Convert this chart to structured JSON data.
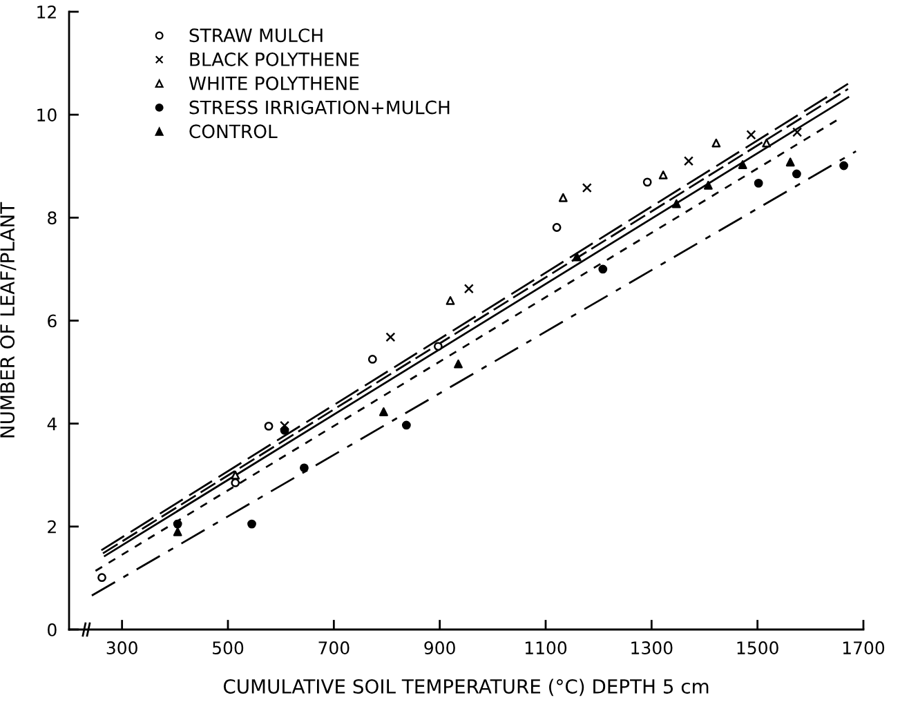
{
  "chart_data": {
    "type": "scatter",
    "xlabel": "CUMULATIVE SOIL TEMPERATURE (°C) DEPTH 5 cm",
    "ylabel": "NUMBER OF LEAF/PLANT",
    "xlim": [
      200,
      1700
    ],
    "xticks": [
      300,
      500,
      700,
      900,
      1100,
      1300,
      1500,
      1700
    ],
    "ylim": [
      0,
      12
    ],
    "yticks": [
      0,
      2,
      4,
      6,
      8,
      10,
      12
    ],
    "grid": false,
    "legend": "top left",
    "series": [
      {
        "name": "STRAW MULCH",
        "marker": "circle-open",
        "color": "#000000",
        "x": [
          262,
          514,
          577,
          773,
          897,
          1121,
          1292
        ],
        "values": [
          1.01,
          2.85,
          3.95,
          5.25,
          5.5,
          7.81,
          8.69
        ]
      },
      {
        "name": "BLACK POLYTHENE",
        "marker": "cross",
        "color": "#000000",
        "x": [
          607,
          807,
          955,
          1178,
          1370,
          1488,
          1575
        ],
        "values": [
          3.96,
          5.68,
          6.62,
          8.58,
          9.1,
          9.61,
          9.66
        ]
      },
      {
        "name": "WHITE POLYTHENE",
        "marker": "triangle-open",
        "color": "#000000",
        "x": [
          514,
          920,
          1133,
          1322,
          1422,
          1517
        ],
        "values": [
          3.0,
          6.39,
          8.39,
          8.83,
          9.45,
          9.45
        ]
      },
      {
        "name": "STRESS IRRIGATION+MULCH",
        "marker": "circle",
        "color": "#000000",
        "x": [
          405,
          545,
          607,
          644,
          837,
          1208,
          1502,
          1574,
          1663
        ],
        "values": [
          2.05,
          2.05,
          3.87,
          3.14,
          3.97,
          7.0,
          8.67,
          8.85,
          9.01
        ]
      },
      {
        "name": "CONTROL",
        "marker": "triangle",
        "color": "#000000",
        "x": [
          405,
          794,
          935,
          1159,
          1347,
          1407,
          1472,
          1562
        ],
        "values": [
          1.9,
          4.23,
          5.16,
          7.24,
          8.27,
          8.63,
          9.03,
          9.08
        ]
      },
      {
        "type": "line",
        "line_style": "longdash",
        "color": "#000000",
        "x": [
          261,
          1671
        ],
        "values": [
          1.54,
          10.6
        ]
      },
      {
        "type": "line",
        "line_style": "dashed",
        "color": "#000000",
        "x": [
          264,
          1671
        ],
        "values": [
          1.48,
          10.5
        ]
      },
      {
        "type": "line",
        "line_style": "solid",
        "color": "#000000",
        "x": [
          266,
          1673
        ],
        "values": [
          1.42,
          10.35
        ]
      },
      {
        "type": "line",
        "line_style": "dotted",
        "color": "#000000",
        "x": [
          250,
          1651
        ],
        "values": [
          1.14,
          9.9
        ]
      },
      {
        "type": "line",
        "line_style": "dashdot",
        "color": "#000000",
        "x": [
          243,
          1686
        ],
        "values": [
          0.66,
          9.29
        ]
      }
    ]
  }
}
